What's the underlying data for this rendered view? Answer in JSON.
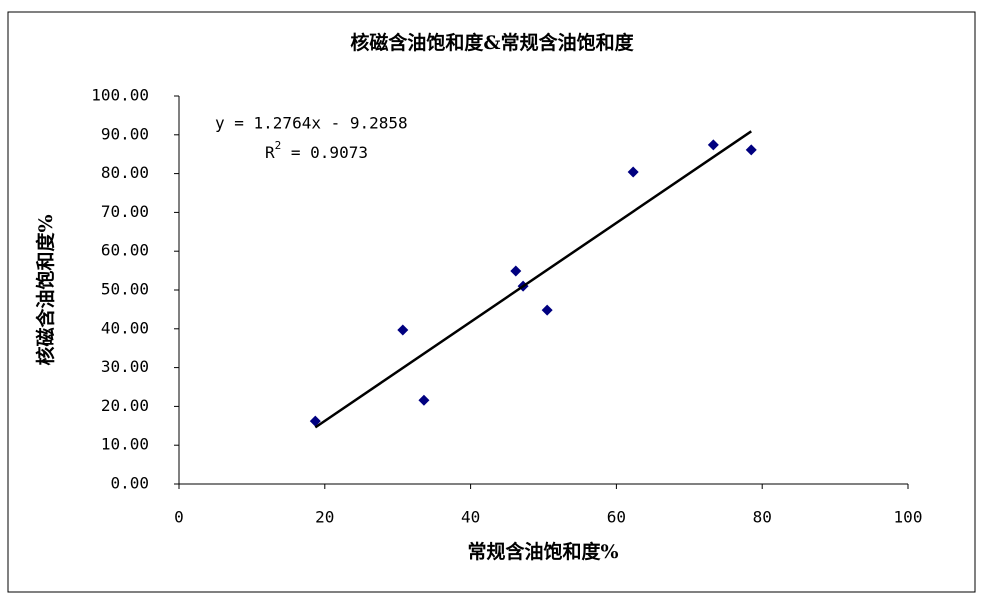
{
  "chart_data": {
    "type": "scatter",
    "title": "核磁含油饱和度&常规含油饱和度",
    "x_label": "常规含油饱和度%",
    "y_label": "核磁含油饱和度%",
    "series": [
      {
        "color": "#000080",
        "x": [
          18.7,
          30.7,
          33.6,
          46.2,
          47.2,
          50.5,
          62.3,
          73.3,
          78.5
        ],
        "values": [
          16.2,
          39.7,
          21.6,
          54.9,
          51.0,
          44.8,
          80.4,
          87.4,
          86.1
        ]
      }
    ],
    "trendline": {
      "color": "#000000",
      "x": [
        18.7,
        78.5
      ],
      "values": [
        14.6,
        90.9
      ],
      "equation": "y = 1.2764x - 9.2858",
      "r_squared_symbol": "R",
      "r_squared_power": "2",
      "r_squared_value": " = 0.9073"
    },
    "xlim": [
      0,
      100
    ],
    "xticks": [
      0,
      20,
      40,
      60,
      80,
      100
    ],
    "ylim": [
      0,
      100
    ],
    "yticks": [
      {
        "value": 0,
        "label": "0.00"
      },
      {
        "value": 10,
        "label": "10.00"
      },
      {
        "value": 20,
        "label": "20.00"
      },
      {
        "value": 30,
        "label": "30.00"
      },
      {
        "value": 40,
        "label": "40.00"
      },
      {
        "value": 50,
        "label": "50.00"
      },
      {
        "value": 60,
        "label": "60.00"
      },
      {
        "value": 70,
        "label": "70.00"
      },
      {
        "value": 80,
        "label": "80.00"
      },
      {
        "value": 90,
        "label": "90.00"
      },
      {
        "value": 100,
        "label": "100.00"
      }
    ],
    "grid": false
  }
}
